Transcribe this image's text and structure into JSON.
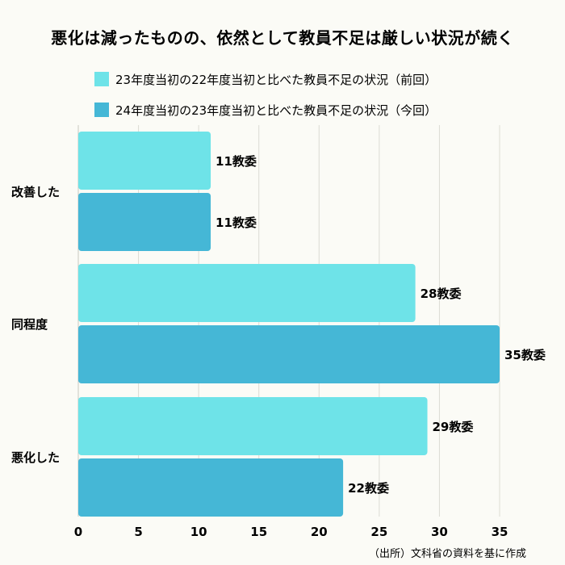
{
  "chart_data": {
    "type": "bar",
    "orientation": "horizontal",
    "title": "悪化は減ったものの、依然として教員不足は厳しい状況が続く",
    "categories": [
      "改善した",
      "同程度",
      "悪化した"
    ],
    "series": [
      {
        "name": "23年度当初の22年度当初と比べた教員不足の状況（前回）",
        "values": [
          11,
          28,
          29
        ],
        "color": "#6ee3e8"
      },
      {
        "name": "24年度当初の23年度当初と比べた教員不足の状況（今回）",
        "values": [
          11,
          35,
          22
        ],
        "color": "#45b7d6"
      }
    ],
    "value_suffix": "教委",
    "xlim": [
      0,
      35
    ],
    "xticks": [
      0,
      5,
      10,
      15,
      20,
      25,
      30,
      35
    ],
    "grid": true,
    "legend_position": "top",
    "source": "（出所）文科省の資料を基に作成"
  }
}
